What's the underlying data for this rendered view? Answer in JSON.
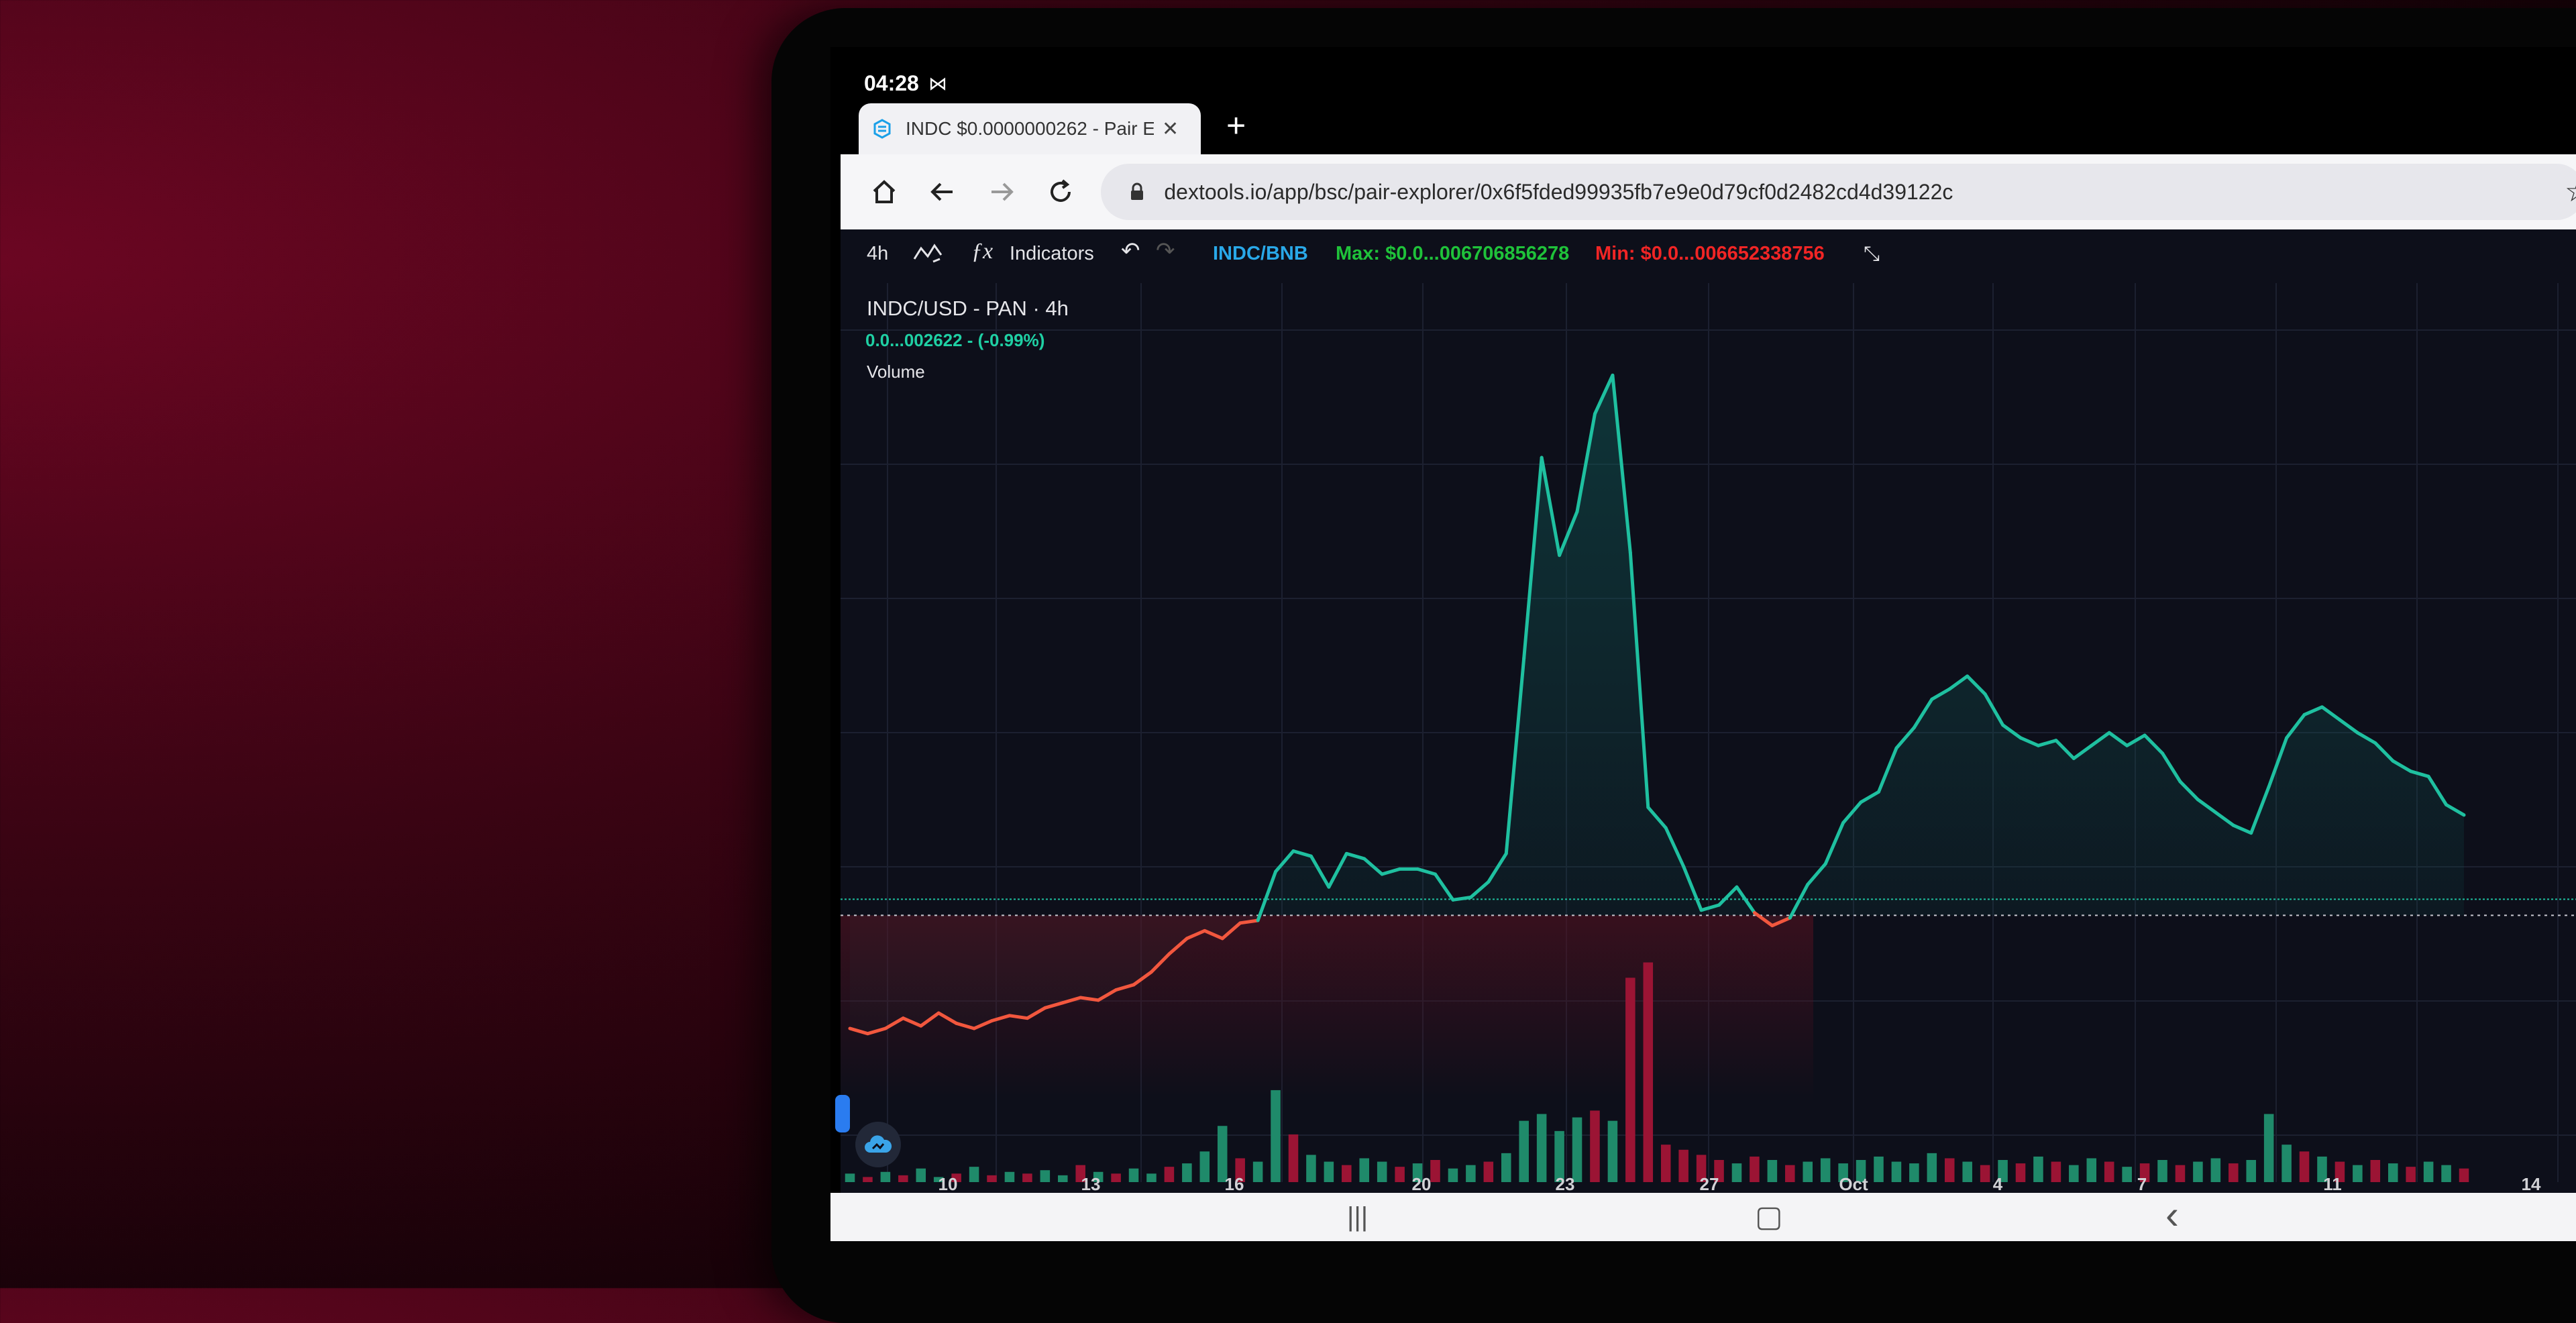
{
  "status": {
    "time": "04:28",
    "icon": "mail-icon"
  },
  "browser": {
    "tab_title": "INDC $0.0000000262 - Pair E",
    "new_tab_label": "+",
    "url": "dextools.io/app/bsc/pair-explorer/0x6f5fded99935fb7e9e0d79cf0d2482cd4d39122c",
    "icons": [
      "home-icon",
      "back-icon",
      "forward-icon",
      "reload-icon",
      "lock-icon",
      "star-icon"
    ]
  },
  "chart_toolbar": {
    "interval": "4h",
    "indicators_label": "Indicators",
    "pair": "INDC/BNB",
    "max": "Max: $0.0...006706856278",
    "min": "Min: $0.0...006652338756"
  },
  "legend": {
    "title": "INDC/USD - PAN · 4h",
    "value": "0.0...002622 - (-0.99%)",
    "volume": "Volume"
  },
  "chart_data": {
    "type": "line",
    "title": "",
    "xlabel": "",
    "ylabel": "",
    "x_ticks": [
      "10",
      "13",
      "16",
      "20",
      "23",
      "27",
      "Oct",
      "4",
      "7",
      "11",
      "14"
    ],
    "baseline": 0.62,
    "colors": {
      "above": "#1fc0a0",
      "below": "#f2573e",
      "vol_up": "#1f8a6a",
      "vol_down": "#9b1434"
    },
    "series": [
      {
        "values": [
          0.18,
          0.16,
          0.18,
          0.22,
          0.19,
          0.24,
          0.2,
          0.18,
          0.21,
          0.23,
          0.22,
          0.26,
          0.28,
          0.3,
          0.29,
          0.33,
          0.35,
          0.4,
          0.47,
          0.53,
          0.56,
          0.53,
          0.59,
          0.6,
          0.79,
          0.87,
          0.85,
          0.73,
          0.86,
          0.84,
          0.78,
          0.8,
          0.8,
          0.78,
          0.68,
          0.69,
          0.75,
          0.86,
          1.62,
          2.4,
          2.02,
          2.19,
          2.57,
          2.72,
          2.03,
          1.04,
          0.96,
          0.81,
          0.64,
          0.66,
          0.73,
          0.63,
          0.58,
          0.61,
          0.74,
          0.82,
          0.98,
          1.06,
          1.1,
          1.27,
          1.35,
          1.46,
          1.5,
          1.55,
          1.48,
          1.36,
          1.31,
          1.28,
          1.3,
          1.23,
          1.28,
          1.33,
          1.28,
          1.32,
          1.25,
          1.14,
          1.07,
          1.02,
          0.97,
          0.94,
          1.12,
          1.31,
          1.4,
          1.43,
          1.38,
          1.33,
          1.29,
          1.22,
          1.18,
          1.16,
          1.05,
          1.01
        ]
      }
    ],
    "volume": [
      0.05,
      0.03,
      0.06,
      0.04,
      0.08,
      0.03,
      0.05,
      0.09,
      0.04,
      0.06,
      0.05,
      0.07,
      0.04,
      0.1,
      0.06,
      0.05,
      0.08,
      0.05,
      0.09,
      0.11,
      0.18,
      0.33,
      0.14,
      0.12,
      0.54,
      0.28,
      0.16,
      0.12,
      0.1,
      0.14,
      0.12,
      0.09,
      0.11,
      0.13,
      0.08,
      0.1,
      0.12,
      0.17,
      0.36,
      0.4,
      0.3,
      0.38,
      0.42,
      0.36,
      1.2,
      1.29,
      0.22,
      0.19,
      0.16,
      0.13,
      0.11,
      0.15,
      0.13,
      0.1,
      0.12,
      0.14,
      0.11,
      0.13,
      0.15,
      0.12,
      0.11,
      0.17,
      0.14,
      0.12,
      0.1,
      0.13,
      0.11,
      0.15,
      0.12,
      0.1,
      0.14,
      0.12,
      0.09,
      0.11,
      0.13,
      0.1,
      0.12,
      0.14,
      0.11,
      0.13,
      0.4,
      0.22,
      0.18,
      0.15,
      0.12,
      0.1,
      0.13,
      0.11,
      0.09,
      0.12,
      0.1,
      0.08
    ],
    "volume_up": [
      true,
      false,
      true,
      false,
      true,
      true,
      false,
      true,
      false,
      true,
      false,
      true,
      true,
      false,
      true,
      false,
      true,
      true,
      false,
      true,
      true,
      true,
      false,
      true,
      true,
      false,
      true,
      true,
      false,
      true,
      true,
      false,
      true,
      false,
      true,
      true,
      false,
      true,
      true,
      true,
      true,
      true,
      false,
      true,
      false,
      false,
      false,
      false,
      false,
      false,
      true,
      false,
      true,
      false,
      true,
      true,
      true,
      true,
      true,
      true,
      true,
      true,
      false,
      true,
      false,
      true,
      false,
      true,
      false,
      true,
      true,
      false,
      true,
      false,
      true,
      false,
      true,
      true,
      false,
      true,
      true,
      true,
      false,
      true,
      false,
      true,
      false,
      true,
      false,
      true,
      true,
      false
    ]
  },
  "navbar": {
    "recent": "|||",
    "home": "▢",
    "back": "‹"
  }
}
